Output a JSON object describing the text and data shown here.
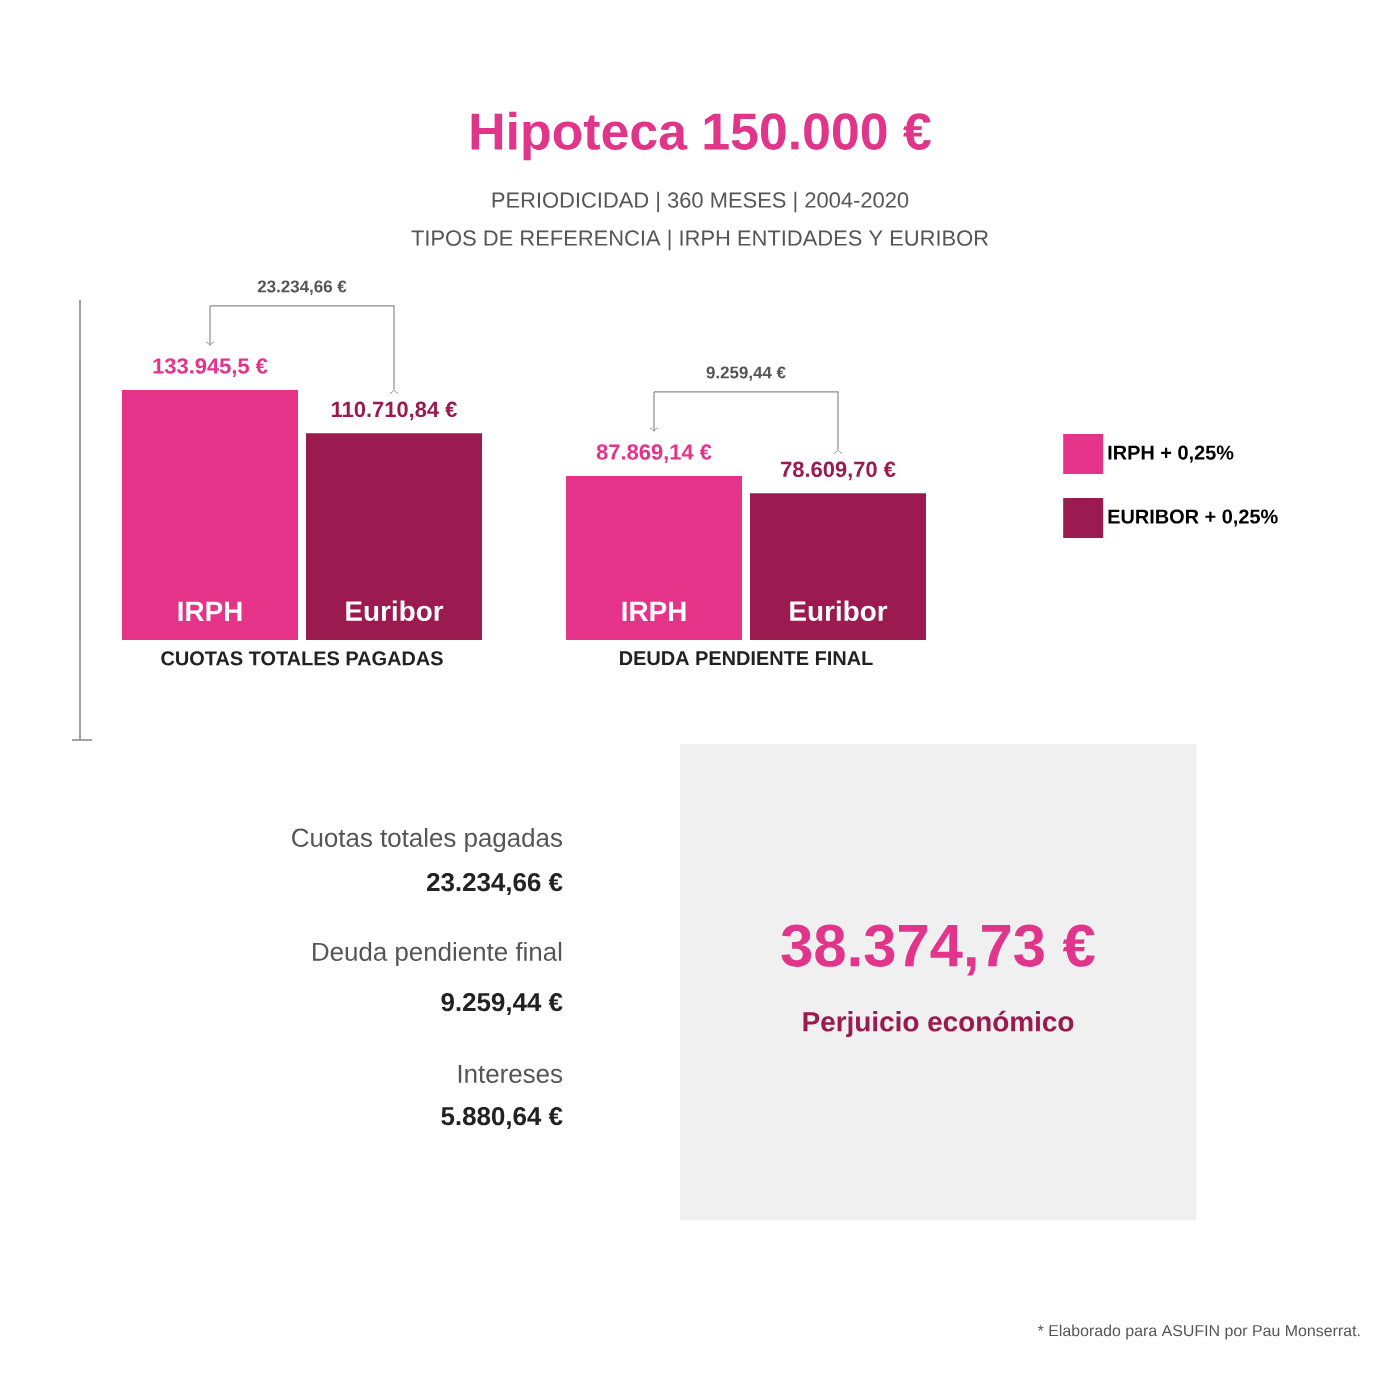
{
  "chart_data": {
    "type": "bar",
    "title": "Hipoteca 150.000 €",
    "subtitle": "PERIODICIDAD | 360 MESES | 2004-2020",
    "categories": [
      "CUOTAS TOTALES PAGADAS",
      "DEUDA PENDIENTE FINAL"
    ],
    "series": [
      {
        "name": "IRPH + 0,25%",
        "color": "#e5338a",
        "values": [
          133945.5,
          87869.14
        ],
        "value_labels": [
          "133.945,5 €",
          "87.869,14 €"
        ]
      },
      {
        "name": "EURIBOR + 0,25%",
        "color": "#9b1b50",
        "values": [
          110710.84,
          78609.7
        ],
        "value_labels": [
          "110.710,84 €",
          "78.609,70 €"
        ]
      }
    ],
    "ylim": [
      0,
      150000
    ],
    "legend": "right",
    "annotations": [
      "TIPOS DE REFERENCIA | IRPH ENTIDADES Y EURIBOR",
      "IRPH",
      "Euribor",
      "IRPH",
      "Euribor",
      "23.234,66 €",
      "9.259,44 €",
      "Cuotas totales pagadas",
      "23.234,66 €",
      "Deuda pendiente final",
      "9.259,44 €",
      "Intereses",
      "5.880,64 €",
      "38.374,73 €",
      "Perjuicio económico",
      "* Elaborado para ASUFIN por Pau Monserrat."
    ]
  }
}
